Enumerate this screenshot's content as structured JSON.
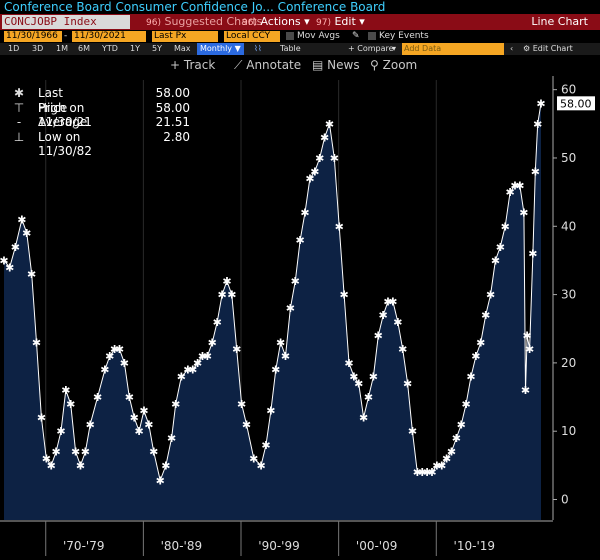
{
  "title": "Conference Board Consumer Confidence Jo...  Conference Board",
  "toolbar1": {
    "ticker": "CONCJOBP Index",
    "suggested_num": "96)",
    "suggested": "Suggested Charts",
    "actions_num": "96)",
    "actions": "Actions",
    "edit_num": "97)",
    "edit": "Edit",
    "chart_type": "Line Chart"
  },
  "toolbar2": {
    "start_date": "11/30/1966",
    "end_date": "11/30/2021",
    "price_field": "Last Px",
    "currency": "Local CCY",
    "mov_avgs": "Mov Avgs",
    "key_events": "Key Events"
  },
  "toolbar3": {
    "periods": [
      "1D",
      "3D",
      "1M",
      "6M",
      "YTD",
      "1Y",
      "5Y",
      "Max"
    ],
    "frequency": "Monthly",
    "table": "Table",
    "compare": "+ Compare",
    "add_data_placeholder": "Add Data",
    "edit_chart": "Edit Chart"
  },
  "tools": {
    "track": "Track",
    "annotate": "Annotate",
    "news": "News",
    "zoom": "Zoom"
  },
  "legend": [
    {
      "label": "Last Price",
      "value": "58.00",
      "icon": "asterisk-icon"
    },
    {
      "label": "High on 11/30/21",
      "value": "58.00",
      "icon": "high-marker-icon"
    },
    {
      "label": "Average",
      "value": "21.51",
      "icon": "average-line-icon"
    },
    {
      "label": "Low on 11/30/82",
      "value": "2.80",
      "icon": "low-marker-icon"
    }
  ],
  "last_value_label": "58.00",
  "colors": {
    "area": "#0d2244",
    "line": "#ffffff",
    "toolbar": "#8a0c16",
    "title": "#3fd0ff",
    "field": "#f5a623",
    "active": "#2b6ae0"
  },
  "chart_data": {
    "type": "area",
    "ylim": [
      -3,
      62
    ],
    "y_ticks": [
      0,
      10,
      20,
      30,
      40,
      50,
      60
    ],
    "x_range": [
      "1966-11",
      "2021-11"
    ],
    "x_labels": [
      {
        "label": "'70-'79",
        "x": "1975-01"
      },
      {
        "label": "'80-'89",
        "x": "1985-01"
      },
      {
        "label": "'90-'99",
        "x": "1995-01"
      },
      {
        "label": "'00-'09",
        "x": "2005-01"
      },
      {
        "label": "'10-'19",
        "x": "2015-01"
      }
    ],
    "series": [
      {
        "x": [
          "1966-11",
          "1967-06",
          "1968-01",
          "1968-09",
          "1969-03",
          "1969-09",
          "1970-03",
          "1970-09",
          "1971-03",
          "1971-09",
          "1972-03",
          "1972-09",
          "1973-03",
          "1973-09",
          "1974-03",
          "1974-09",
          "1975-03",
          "1975-09",
          "1976-06",
          "1977-03",
          "1977-09",
          "1978-03",
          "1978-09",
          "1979-03",
          "1979-09",
          "1980-03",
          "1980-09",
          "1981-03",
          "1981-09",
          "1982-03",
          "1982-11",
          "1983-06",
          "1984-01",
          "1984-06",
          "1985-01",
          "1985-09",
          "1986-03",
          "1986-09",
          "1987-03",
          "1987-09",
          "1988-03",
          "1988-09",
          "1989-03",
          "1989-09",
          "1990-03",
          "1990-09",
          "1991-03",
          "1991-09",
          "1992-06",
          "1993-03",
          "1993-09",
          "1994-03",
          "1994-09",
          "1995-03",
          "1995-09",
          "1996-03",
          "1996-09",
          "1997-03",
          "1997-09",
          "1998-03",
          "1998-09",
          "1999-03",
          "1999-09",
          "2000-03",
          "2000-09",
          "2001-03",
          "2001-09",
          "2002-03",
          "2002-09",
          "2003-03",
          "2003-09",
          "2004-03",
          "2004-09",
          "2005-03",
          "2005-09",
          "2006-03",
          "2006-09",
          "2007-03",
          "2007-09",
          "2008-03",
          "2008-09",
          "2009-03",
          "2009-09",
          "2010-03",
          "2010-09",
          "2011-03",
          "2011-09",
          "2012-03",
          "2012-09",
          "2013-03",
          "2013-09",
          "2014-03",
          "2014-09",
          "2015-03",
          "2015-09",
          "2016-03",
          "2016-09",
          "2017-03",
          "2017-09",
          "2018-03",
          "2018-09",
          "2019-03",
          "2019-09",
          "2020-02",
          "2020-04",
          "2020-06",
          "2020-09",
          "2021-01",
          "2021-04",
          "2021-07",
          "2021-11"
        ],
        "values": [
          35,
          34,
          37,
          41,
          39,
          33,
          23,
          12,
          6,
          5,
          7,
          10,
          16,
          14,
          7,
          5,
          7,
          11,
          15,
          19,
          21,
          22,
          22,
          20,
          15,
          12,
          10,
          13,
          11,
          7,
          2.8,
          5,
          9,
          14,
          18,
          19,
          19,
          20,
          21,
          21,
          23,
          26,
          30,
          32,
          30,
          22,
          14,
          11,
          6,
          5,
          8,
          13,
          19,
          23,
          21,
          28,
          32,
          38,
          42,
          47,
          48,
          50,
          53,
          55,
          50,
          40,
          30,
          20,
          18,
          17,
          12,
          15,
          18,
          24,
          27,
          29,
          29,
          26,
          22,
          17,
          10,
          4,
          4,
          4,
          4,
          5,
          5,
          6,
          7,
          9,
          11,
          14,
          18,
          21,
          23,
          27,
          30,
          35,
          37,
          40,
          45,
          46,
          46,
          42,
          16,
          24,
          22,
          36,
          48,
          55,
          58
        ]
      }
    ]
  }
}
